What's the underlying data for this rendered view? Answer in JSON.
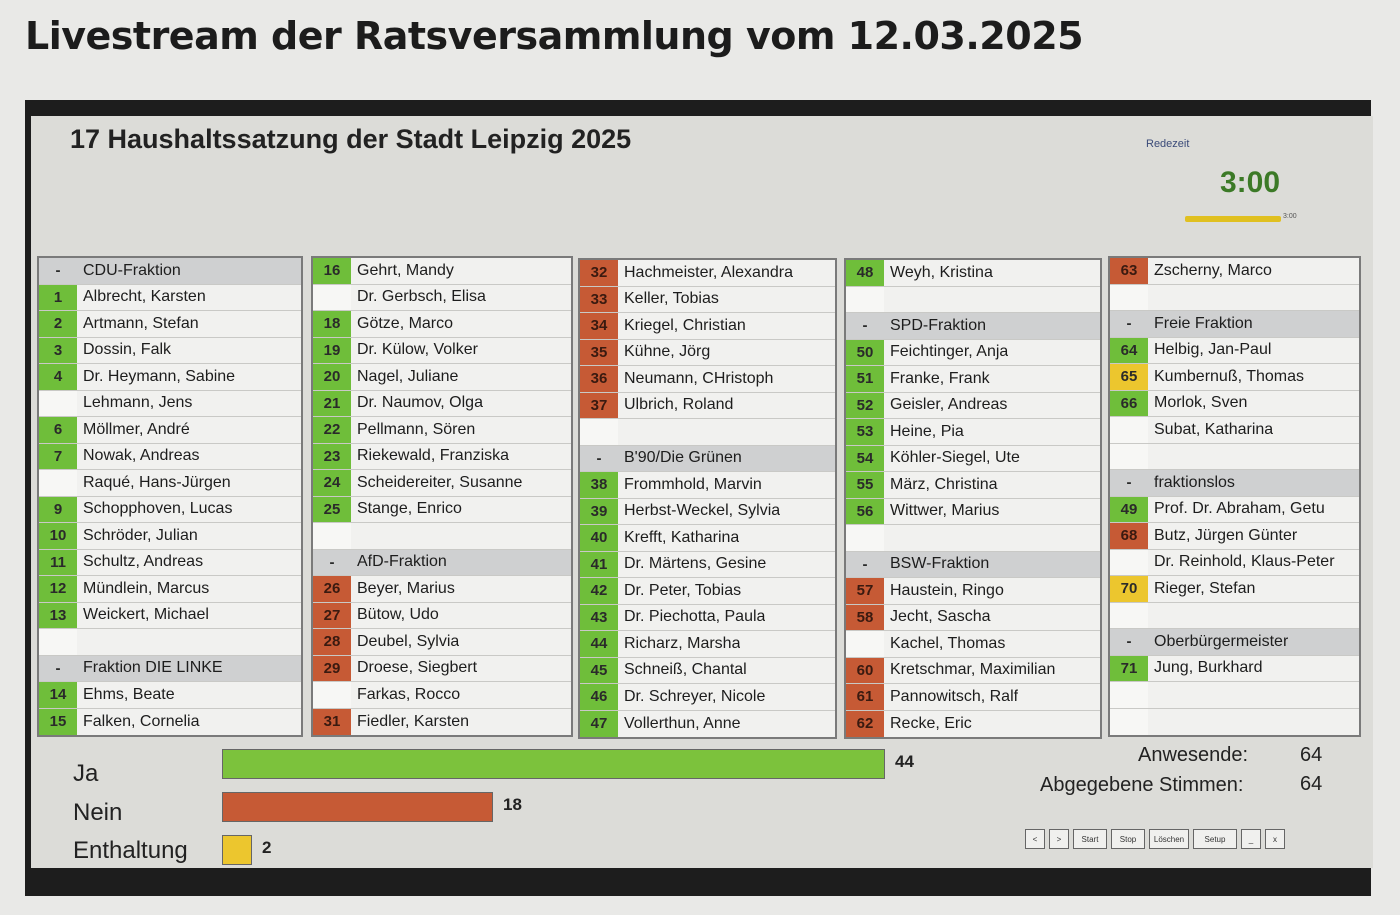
{
  "page_title": "Livestream der Ratsversammlung vom 12.03.2025",
  "agenda_title": "17  Haushaltssatzung der Stadt Leipzig 2025",
  "redezeit_label": "Redezeit",
  "timer": "3:00",
  "timer_bar_label": "3:00",
  "columns": [
    [
      {
        "n": "-",
        "c": "header",
        "t": "CDU-Fraktion"
      },
      {
        "n": "1",
        "c": "green",
        "t": "Albrecht, Karsten"
      },
      {
        "n": "2",
        "c": "green",
        "t": "Artmann, Stefan"
      },
      {
        "n": "3",
        "c": "green",
        "t": "Dossin, Falk"
      },
      {
        "n": "4",
        "c": "green",
        "t": "Dr. Heymann, Sabine"
      },
      {
        "n": "",
        "c": "white",
        "t": "Lehmann, Jens"
      },
      {
        "n": "6",
        "c": "green",
        "t": "Möllmer, André"
      },
      {
        "n": "7",
        "c": "green",
        "t": "Nowak, Andreas"
      },
      {
        "n": "",
        "c": "white",
        "t": "Raqué, Hans-Jürgen"
      },
      {
        "n": "9",
        "c": "green",
        "t": "Schopphoven, Lucas"
      },
      {
        "n": "10",
        "c": "green",
        "t": "Schröder, Julian"
      },
      {
        "n": "11",
        "c": "green",
        "t": "Schultz, Andreas"
      },
      {
        "n": "12",
        "c": "green",
        "t": "Mündlein, Marcus"
      },
      {
        "n": "13",
        "c": "green",
        "t": "Weickert, Michael"
      },
      {
        "n": "",
        "c": "white",
        "t": ""
      },
      {
        "n": "-",
        "c": "header",
        "t": "Fraktion DIE LINKE"
      },
      {
        "n": "14",
        "c": "green",
        "t": "Ehms, Beate"
      },
      {
        "n": "15",
        "c": "green",
        "t": "Falken, Cornelia"
      }
    ],
    [
      {
        "n": "16",
        "c": "green",
        "t": "Gehrt, Mandy"
      },
      {
        "n": "",
        "c": "white",
        "t": "Dr. Gerbsch, Elisa"
      },
      {
        "n": "18",
        "c": "green",
        "t": "Götze, Marco"
      },
      {
        "n": "19",
        "c": "green",
        "t": "Dr. Külow, Volker"
      },
      {
        "n": "20",
        "c": "green",
        "t": "Nagel, Juliane"
      },
      {
        "n": "21",
        "c": "green",
        "t": "Dr. Naumov, Olga"
      },
      {
        "n": "22",
        "c": "green",
        "t": "Pellmann, Sören"
      },
      {
        "n": "23",
        "c": "green",
        "t": "Riekewald, Franziska"
      },
      {
        "n": "24",
        "c": "green",
        "t": "Scheidereiter, Susanne"
      },
      {
        "n": "25",
        "c": "green",
        "t": "Stange, Enrico"
      },
      {
        "n": "",
        "c": "white",
        "t": ""
      },
      {
        "n": "-",
        "c": "header",
        "t": "AfD-Fraktion"
      },
      {
        "n": "26",
        "c": "red",
        "t": "Beyer, Marius"
      },
      {
        "n": "27",
        "c": "red",
        "t": "Bütow, Udo"
      },
      {
        "n": "28",
        "c": "red",
        "t": "Deubel, Sylvia"
      },
      {
        "n": "29",
        "c": "red",
        "t": "Droese, Siegbert"
      },
      {
        "n": "",
        "c": "white",
        "t": "Farkas, Rocco"
      },
      {
        "n": "31",
        "c": "red",
        "t": "Fiedler, Karsten"
      }
    ],
    [
      {
        "n": "32",
        "c": "red",
        "t": "Hachmeister, Alexandra"
      },
      {
        "n": "33",
        "c": "red",
        "t": "Keller, Tobias"
      },
      {
        "n": "34",
        "c": "red",
        "t": "Kriegel, Christian"
      },
      {
        "n": "35",
        "c": "red",
        "t": "Kühne, Jörg"
      },
      {
        "n": "36",
        "c": "red",
        "t": "Neumann, CHristoph"
      },
      {
        "n": "37",
        "c": "red",
        "t": "Ulbrich, Roland"
      },
      {
        "n": "",
        "c": "white",
        "t": ""
      },
      {
        "n": "-",
        "c": "header",
        "t": "B'90/Die Grünen"
      },
      {
        "n": "38",
        "c": "green",
        "t": "Frommhold, Marvin"
      },
      {
        "n": "39",
        "c": "green",
        "t": "Herbst-Weckel, Sylvia"
      },
      {
        "n": "40",
        "c": "green",
        "t": "Krefft, Katharina"
      },
      {
        "n": "41",
        "c": "green",
        "t": "Dr. Märtens, Gesine"
      },
      {
        "n": "42",
        "c": "green",
        "t": "Dr. Peter, Tobias"
      },
      {
        "n": "43",
        "c": "green",
        "t": "Dr. Piechotta, Paula"
      },
      {
        "n": "44",
        "c": "green",
        "t": "Richarz, Marsha"
      },
      {
        "n": "45",
        "c": "green",
        "t": "Schneiß, Chantal"
      },
      {
        "n": "46",
        "c": "green",
        "t": "Dr. Schreyer, Nicole"
      },
      {
        "n": "47",
        "c": "green",
        "t": "Vollerthun, Anne"
      }
    ],
    [
      {
        "n": "48",
        "c": "green",
        "t": "Weyh, Kristina"
      },
      {
        "n": "",
        "c": "white",
        "t": ""
      },
      {
        "n": "-",
        "c": "header",
        "t": "SPD-Fraktion"
      },
      {
        "n": "50",
        "c": "green",
        "t": "Feichtinger, Anja"
      },
      {
        "n": "51",
        "c": "green",
        "t": "Franke, Frank"
      },
      {
        "n": "52",
        "c": "green",
        "t": "Geisler, Andreas"
      },
      {
        "n": "53",
        "c": "green",
        "t": "Heine, Pia"
      },
      {
        "n": "54",
        "c": "green",
        "t": "Köhler-Siegel, Ute"
      },
      {
        "n": "55",
        "c": "green",
        "t": "März, Christina"
      },
      {
        "n": "56",
        "c": "green",
        "t": "Wittwer, Marius"
      },
      {
        "n": "",
        "c": "white",
        "t": ""
      },
      {
        "n": "-",
        "c": "header",
        "t": "BSW-Fraktion"
      },
      {
        "n": "57",
        "c": "red",
        "t": "Haustein, Ringo"
      },
      {
        "n": "58",
        "c": "red",
        "t": "Jecht, Sascha"
      },
      {
        "n": "",
        "c": "white",
        "t": "Kachel, Thomas"
      },
      {
        "n": "60",
        "c": "red",
        "t": "Kretschmar, Maximilian"
      },
      {
        "n": "61",
        "c": "red",
        "t": "Pannowitsch, Ralf"
      },
      {
        "n": "62",
        "c": "red",
        "t": "Recke, Eric"
      }
    ],
    [
      {
        "n": "63",
        "c": "red",
        "t": "Zscherny, Marco"
      },
      {
        "n": "",
        "c": "white",
        "t": ""
      },
      {
        "n": "-",
        "c": "header",
        "t": "Freie Fraktion"
      },
      {
        "n": "64",
        "c": "green",
        "t": "Helbig, Jan-Paul"
      },
      {
        "n": "65",
        "c": "yellow",
        "t": "Kumbernuß, Thomas"
      },
      {
        "n": "66",
        "c": "green",
        "t": "Morlok, Sven"
      },
      {
        "n": "",
        "c": "white",
        "t": "Subat, Katharina"
      },
      {
        "n": "",
        "c": "white",
        "t": ""
      },
      {
        "n": "-",
        "c": "header",
        "t": "fraktionslos"
      },
      {
        "n": "49",
        "c": "green",
        "t": "Prof. Dr. Abraham, Getu"
      },
      {
        "n": "68",
        "c": "red",
        "t": "Butz, Jürgen Günter"
      },
      {
        "n": "",
        "c": "white",
        "t": "Dr. Reinhold, Klaus-Peter"
      },
      {
        "n": "70",
        "c": "yellow",
        "t": "Rieger, Stefan"
      },
      {
        "n": "",
        "c": "white",
        "t": ""
      },
      {
        "n": "-",
        "c": "header",
        "t": "Oberbürgermeister"
      },
      {
        "n": "71",
        "c": "green",
        "t": "Jung, Burkhard"
      },
      {
        "n": "",
        "c": "white",
        "t": ""
      },
      {
        "n": "",
        "c": "white",
        "t": ""
      }
    ]
  ],
  "votes": {
    "ja_label": "Ja",
    "ja_count": "44",
    "ja_value": 44,
    "nein_label": "Nein",
    "nein_count": "18",
    "nein_value": 18,
    "enthaltung_label": "Enthaltung",
    "enthaltung_count": "2",
    "enthaltung_value": 2,
    "color_ja": "#7cc23c",
    "color_nein": "#c65a35",
    "color_enthaltung": "#ecc62e"
  },
  "stats": {
    "anwesende_label": "Anwesende:",
    "anwesende_value": "64",
    "abgegeben_label": "Abgegebene Stimmen:",
    "abgegeben_value": "64"
  },
  "controls": [
    "<",
    ">",
    "Start",
    "Stop",
    "Löschen",
    "Setup",
    "_",
    "x"
  ]
}
